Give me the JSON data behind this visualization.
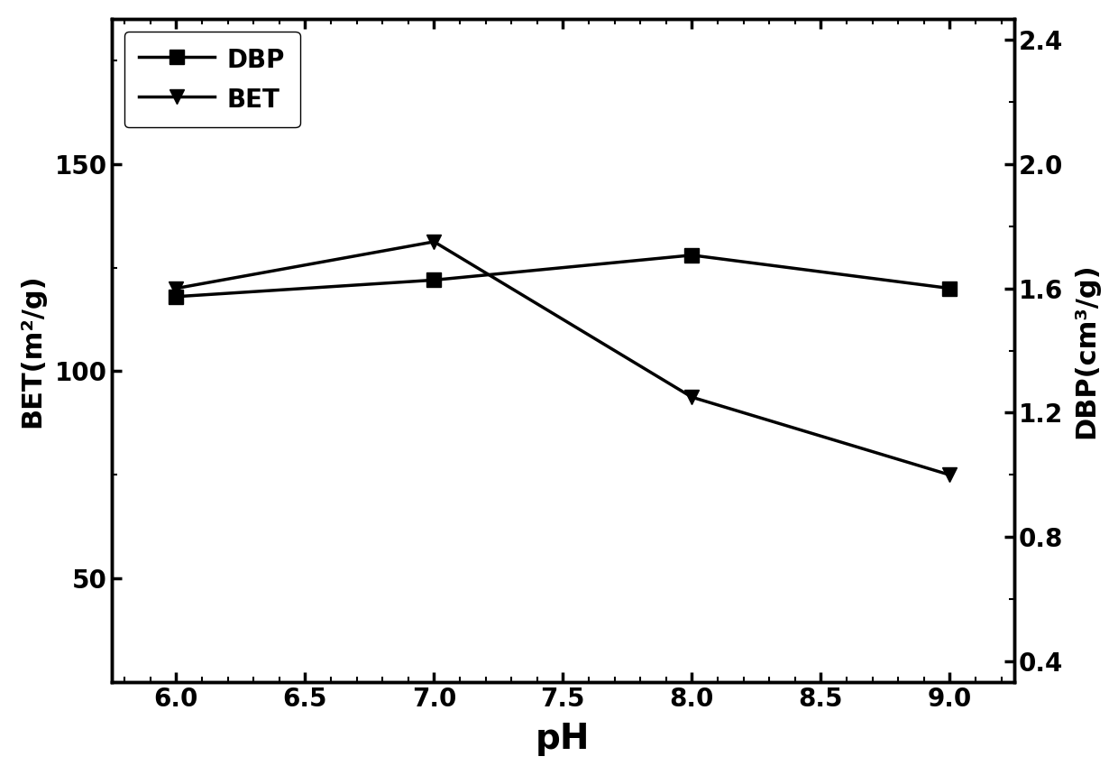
{
  "ph": [
    6.0,
    7.0,
    8.0,
    9.0
  ],
  "dbp_values": [
    118,
    122,
    128,
    120
  ],
  "bet_values": [
    1.6,
    1.75,
    1.25,
    1.0
  ],
  "left_ylabel": "BET(m²/g)",
  "right_ylabel": "DBP(cm³/g)",
  "xlabel": "pH",
  "left_ylim": [
    25,
    185
  ],
  "left_yticks": [
    50,
    100,
    150
  ],
  "right_ylim": [
    0.333,
    2.467
  ],
  "right_yticks": [
    0.4,
    0.8,
    1.2,
    1.6,
    2.0,
    2.4
  ],
  "xlim": [
    5.75,
    9.25
  ],
  "xticks": [
    6.0,
    6.5,
    7.0,
    7.5,
    8.0,
    8.5,
    9.0
  ],
  "dbp_label": "DBP",
  "bet_label": "BET",
  "line_color": "#000000",
  "marker_dbp": "s",
  "marker_bet": "v",
  "markersize": 12,
  "linewidth": 2.5,
  "background_color": "#ffffff"
}
